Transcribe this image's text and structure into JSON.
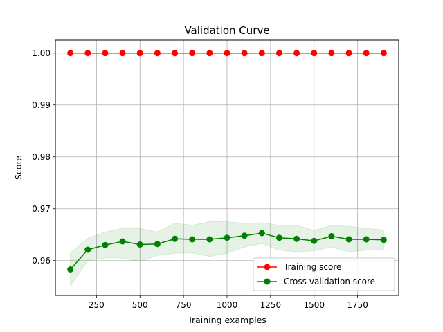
{
  "chart_data": {
    "type": "line",
    "title": "Validation Curve",
    "xlabel": "Training examples",
    "ylabel": "Score",
    "xlim": [
      14,
      1986
    ],
    "ylim": [
      0.9533,
      1.0025
    ],
    "xticks": [
      250,
      500,
      750,
      1000,
      1250,
      1500,
      1750
    ],
    "yticks": [
      0.96,
      0.97,
      0.98,
      0.99,
      1.0
    ],
    "ytick_labels": [
      "0.96",
      "0.97",
      "0.98",
      "0.99",
      "1.00"
    ],
    "grid": true,
    "legend_position": "lower-right",
    "x": [
      100,
      200,
      300,
      400,
      500,
      600,
      700,
      800,
      900,
      1000,
      1100,
      1200,
      1300,
      1400,
      1500,
      1600,
      1700,
      1800,
      1900
    ],
    "series": [
      {
        "name": "Training score",
        "color": "#ff0000",
        "values": [
          1.0,
          1.0,
          1.0,
          1.0,
          1.0,
          1.0,
          1.0,
          1.0,
          1.0,
          1.0,
          1.0,
          1.0,
          1.0,
          1.0,
          1.0,
          1.0,
          1.0,
          1.0,
          1.0
        ]
      },
      {
        "name": "Cross-validation score",
        "color": "#008000",
        "band_color": "#008000",
        "values": [
          0.9583,
          0.9621,
          0.963,
          0.9637,
          0.9631,
          0.9632,
          0.9642,
          0.9641,
          0.9641,
          0.9644,
          0.9648,
          0.9653,
          0.9644,
          0.9642,
          0.9638,
          0.9647,
          0.9641,
          0.9641,
          0.964
        ],
        "band_upper": [
          0.9615,
          0.9643,
          0.9655,
          0.9662,
          0.9662,
          0.9655,
          0.9672,
          0.9668,
          0.9675,
          0.9675,
          0.9672,
          0.9673,
          0.9668,
          0.9668,
          0.9658,
          0.9668,
          0.9666,
          0.9662,
          0.9659
        ],
        "band_lower": [
          0.9551,
          0.96,
          0.9605,
          0.9605,
          0.9598,
          0.961,
          0.9614,
          0.9615,
          0.9608,
          0.9614,
          0.9626,
          0.9633,
          0.962,
          0.9617,
          0.9619,
          0.9626,
          0.9617,
          0.962,
          0.9621
        ]
      }
    ]
  }
}
